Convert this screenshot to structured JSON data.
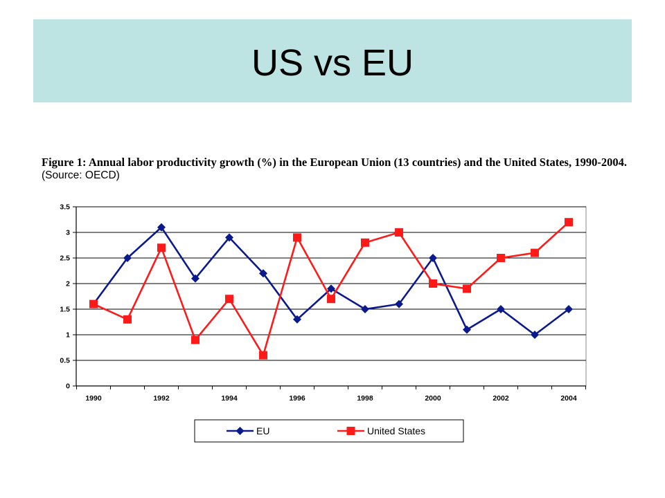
{
  "slide": {
    "title": "US vs EU"
  },
  "caption": {
    "bold": "Figure 1: Annual labor productivity growth (%) in the European Union (13 countries) and the United States, 1990-2004.",
    "source": "(Source: OECD)"
  },
  "colors": {
    "title_band": "#bde3e3",
    "eu": "#0a1a8c",
    "us": "#ff1a1a",
    "grid": "#000000"
  },
  "chart_data": {
    "type": "line",
    "x": [
      1990,
      1991,
      1992,
      1993,
      1994,
      1995,
      1996,
      1997,
      1998,
      1999,
      2000,
      2001,
      2002,
      2003,
      2004
    ],
    "x_tick_labels": [
      "1990",
      "1992",
      "1994",
      "1996",
      "1998",
      "2000",
      "2002",
      "2004"
    ],
    "y_tick_labels": [
      "0",
      "0.5",
      "1",
      "1.5",
      "2",
      "2.5",
      "3",
      "3.5"
    ],
    "ylim": [
      0,
      3.5
    ],
    "grid": true,
    "legend_position": "bottom",
    "series": [
      {
        "name": "EU",
        "marker": "diamond",
        "color": "#0a1a8c",
        "values": [
          1.6,
          2.5,
          3.1,
          2.1,
          2.9,
          2.2,
          1.3,
          1.9,
          1.5,
          1.6,
          2.5,
          1.1,
          1.5,
          1.0,
          1.5
        ]
      },
      {
        "name": "United States",
        "marker": "square",
        "color": "#ff1a1a",
        "values": [
          1.6,
          1.3,
          2.7,
          0.9,
          1.7,
          0.6,
          2.9,
          1.7,
          2.8,
          3.0,
          2.0,
          1.9,
          2.5,
          2.6,
          3.2
        ]
      }
    ]
  }
}
